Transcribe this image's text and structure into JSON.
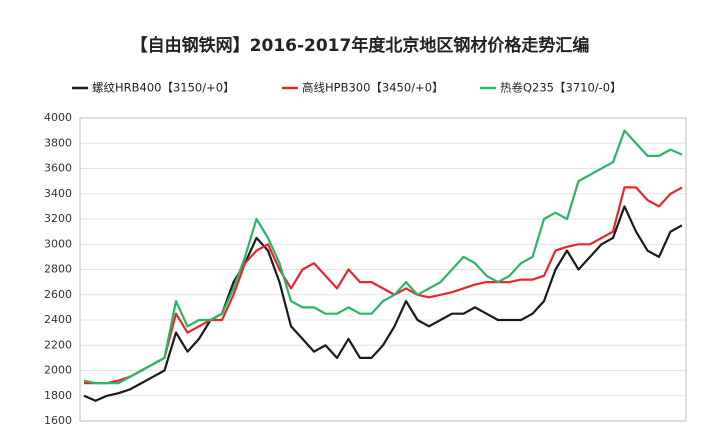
{
  "chart_data": {
    "type": "line",
    "title": "【自由钢铁网】2016-2017年度北京地区钢材价格走势汇编",
    "ylim": [
      1600,
      4000
    ],
    "yticks": [
      1600,
      1800,
      2000,
      2200,
      2400,
      2600,
      2800,
      3000,
      3200,
      3400,
      3600,
      3800,
      4000
    ],
    "grid": true,
    "legend": "top",
    "series": [
      {
        "name": "螺纹HRB400【3150/+0】",
        "color": "#1a1a1a",
        "values": [
          1800,
          1760,
          1800,
          1820,
          1850,
          1900,
          1950,
          2000,
          2300,
          2150,
          2250,
          2400,
          2450,
          2700,
          2850,
          3050,
          2950,
          2700,
          2350,
          2250,
          2150,
          2200,
          2100,
          2250,
          2100,
          2100,
          2200,
          2350,
          2550,
          2400,
          2350,
          2400,
          2450,
          2450,
          2500,
          2450,
          2400,
          2400,
          2400,
          2450,
          2550,
          2800,
          2950,
          2800,
          2900,
          3000,
          3050,
          3300,
          3100,
          2950,
          2900,
          3100,
          3150
        ]
      },
      {
        "name": "高线HPB300【3450/+0】",
        "color": "#e8262b",
        "values": [
          1900,
          1900,
          1900,
          1920,
          1950,
          2000,
          2050,
          2100,
          2450,
          2300,
          2350,
          2400,
          2400,
          2600,
          2850,
          2950,
          3000,
          2800,
          2650,
          2800,
          2850,
          2750,
          2650,
          2800,
          2700,
          2700,
          2650,
          2600,
          2650,
          2600,
          2580,
          2600,
          2620,
          2650,
          2680,
          2700,
          2700,
          2700,
          2720,
          2720,
          2750,
          2950,
          2980,
          3000,
          3000,
          3050,
          3100,
          3450,
          3450,
          3350,
          3300,
          3400,
          3450
        ]
      },
      {
        "name": "热卷Q235【3710/-0】",
        "color": "#2bb566",
        "values": [
          1920,
          1900,
          1900,
          1900,
          1950,
          2000,
          2050,
          2100,
          2550,
          2350,
          2400,
          2400,
          2450,
          2650,
          2900,
          3200,
          3050,
          2850,
          2550,
          2500,
          2500,
          2450,
          2450,
          2500,
          2450,
          2450,
          2550,
          2600,
          2700,
          2600,
          2650,
          2700,
          2800,
          2900,
          2850,
          2750,
          2700,
          2750,
          2850,
          2900,
          3200,
          3250,
          3200,
          3500,
          3550,
          3600,
          3650,
          3900,
          3800,
          3700,
          3700,
          3750,
          3710
        ]
      }
    ]
  }
}
